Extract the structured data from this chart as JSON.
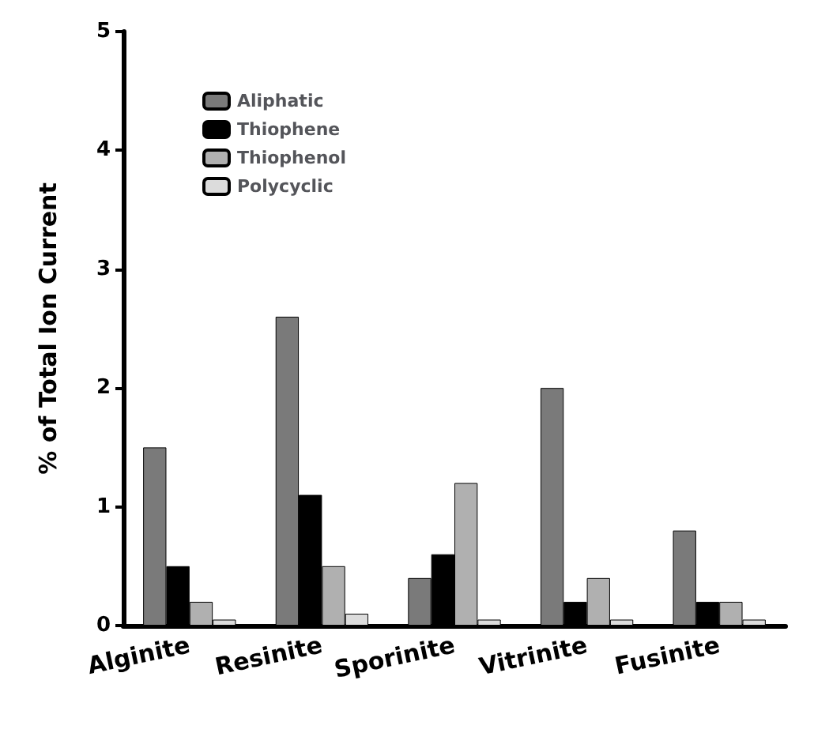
{
  "chart_data": {
    "type": "bar",
    "ylabel": "% of Total Ion Current",
    "categories": [
      "Alginite",
      "Resinite",
      "Sporinite",
      "Vitrinite",
      "Fusinite"
    ],
    "series": [
      {
        "name": "Aliphatic",
        "color": "#7a7a7a",
        "values": [
          1.5,
          2.6,
          0.4,
          2.0,
          0.8
        ]
      },
      {
        "name": "Thiophene",
        "color": "#000000",
        "values": [
          0.5,
          1.1,
          0.6,
          0.2,
          0.2
        ]
      },
      {
        "name": "Thiophenol",
        "color": "#b0b0b0",
        "values": [
          0.2,
          0.5,
          1.2,
          0.4,
          0.2
        ]
      },
      {
        "name": "Polycyclic",
        "color": "#dcdcdc",
        "values": [
          0.05,
          0.1,
          0.05,
          0.05,
          0.05
        ]
      }
    ],
    "ylim": [
      0,
      5
    ],
    "yticks": [
      0,
      1,
      2,
      3,
      4,
      5
    ],
    "grid": false,
    "legend": "top left"
  }
}
